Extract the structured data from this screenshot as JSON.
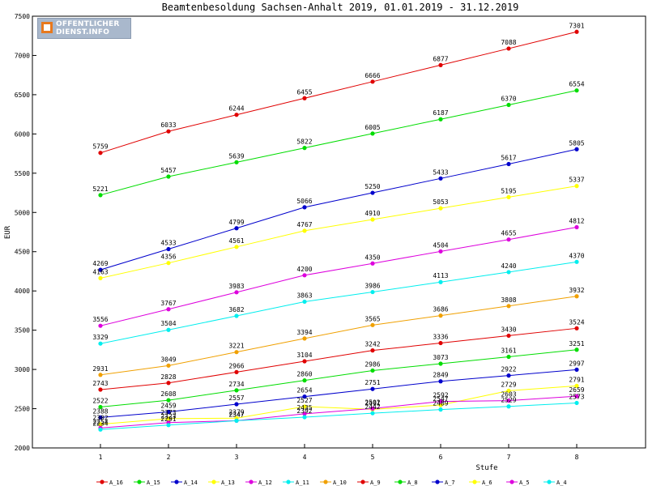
{
  "chart_data": {
    "type": "line",
    "title": "Beamtenbesoldung Sachsen-Anhalt 2019, 01.01.2019 - 31.12.2019",
    "xlabel": "Stufe",
    "ylabel": "EUR",
    "x": [
      1,
      2,
      3,
      4,
      5,
      6,
      7,
      8
    ],
    "ylim": [
      2000,
      7500
    ],
    "yticks": [
      2000,
      2500,
      3000,
      3500,
      4000,
      4500,
      5000,
      5500,
      6000,
      6500,
      7000,
      7500
    ],
    "grid": false,
    "legend_position": "bottom",
    "series": [
      {
        "name": "A_16",
        "color": "#e00000",
        "values": [
          5759,
          6033,
          6244,
          6455,
          6666,
          6877,
          7088,
          7301
        ]
      },
      {
        "name": "A_15",
        "color": "#00dd00",
        "values": [
          5221,
          5457,
          5639,
          5822,
          6005,
          6187,
          6370,
          6554
        ]
      },
      {
        "name": "A_14",
        "color": "#0000cc",
        "values": [
          4269,
          4533,
          4799,
          5066,
          5250,
          5433,
          5617,
          5805
        ]
      },
      {
        "name": "A_13",
        "color": "#ffff00",
        "values": [
          4163,
          4356,
          4561,
          4767,
          4910,
          5053,
          5195,
          5337
        ]
      },
      {
        "name": "A_12",
        "color": "#dd00dd",
        "values": [
          3556,
          3767,
          3983,
          4200,
          4350,
          4504,
          4655,
          4812
        ]
      },
      {
        "name": "A_11",
        "color": "#00eeee",
        "values": [
          3329,
          3504,
          3682,
          3863,
          3986,
          4113,
          4240,
          4370
        ]
      },
      {
        "name": "A_10",
        "color": "#f0a000",
        "values": [
          2931,
          3049,
          3221,
          3394,
          3565,
          3686,
          3808,
          3932
        ]
      },
      {
        "name": "A_9",
        "color": "#e00000",
        "values": [
          2743,
          2828,
          2966,
          3104,
          3242,
          3336,
          3430,
          3524
        ]
      },
      {
        "name": "A_8",
        "color": "#00dd00",
        "values": [
          2522,
          2608,
          2734,
          2860,
          2986,
          3073,
          3161,
          3251
        ]
      },
      {
        "name": "A_7",
        "color": "#0000cc",
        "values": [
          2388,
          2459,
          2557,
          2654,
          2751,
          2849,
          2922,
          2997
        ]
      },
      {
        "name": "A_6",
        "color": "#ffff00",
        "values": [
          2302,
          2373,
          2379,
          2527,
          2491,
          2547,
          2729,
          2791
        ]
      },
      {
        "name": "A_5",
        "color": "#dd00dd",
        "values": [
          2254,
          2323,
          2347,
          2435,
          2502,
          2592,
          2603,
          2659
        ]
      },
      {
        "name": "A_4",
        "color": "#00eeee",
        "values": [
          2234,
          2291,
          2347,
          2392,
          2442,
          2489,
          2529,
          2573
        ]
      }
    ]
  },
  "logo": {
    "line1": "OFFENTLICHER",
    "line2": "DIENST.INFO"
  }
}
